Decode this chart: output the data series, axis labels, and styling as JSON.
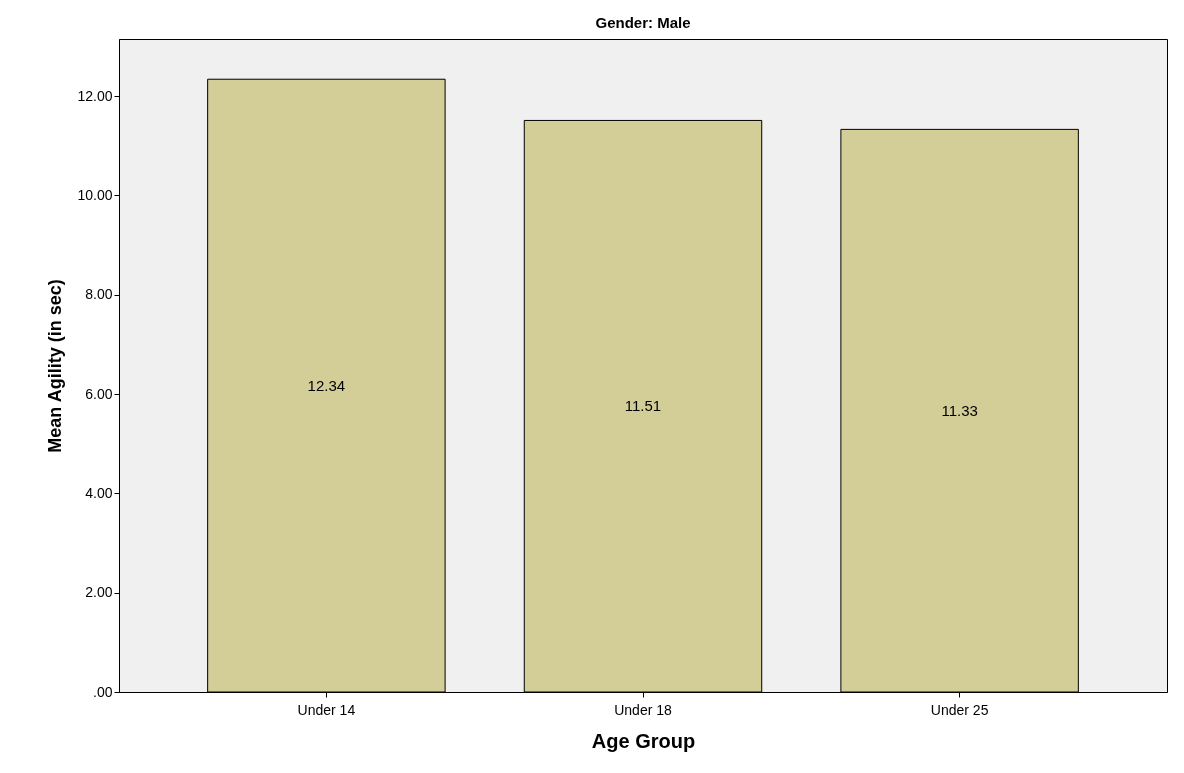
{
  "chart_data": {
    "type": "bar",
    "title": "Gender: Male",
    "xlabel": "Age Group",
    "ylabel": "Mean Agility (in sec)",
    "categories": [
      "Under 14",
      "Under 18",
      "Under 25"
    ],
    "values": [
      12.34,
      11.51,
      11.33
    ],
    "color": "#d3cd97",
    "ylim": [
      0,
      13.15
    ],
    "yticks": [
      {
        "value": 0,
        "label": ".00"
      },
      {
        "value": 2,
        "label": "2.00"
      },
      {
        "value": 4,
        "label": "4.00"
      },
      {
        "value": 6,
        "label": "6.00"
      },
      {
        "value": 8,
        "label": "8.00"
      },
      {
        "value": 10,
        "label": "10.00"
      },
      {
        "value": 12,
        "label": "12.00"
      }
    ],
    "data_labels": true,
    "grid": false
  }
}
